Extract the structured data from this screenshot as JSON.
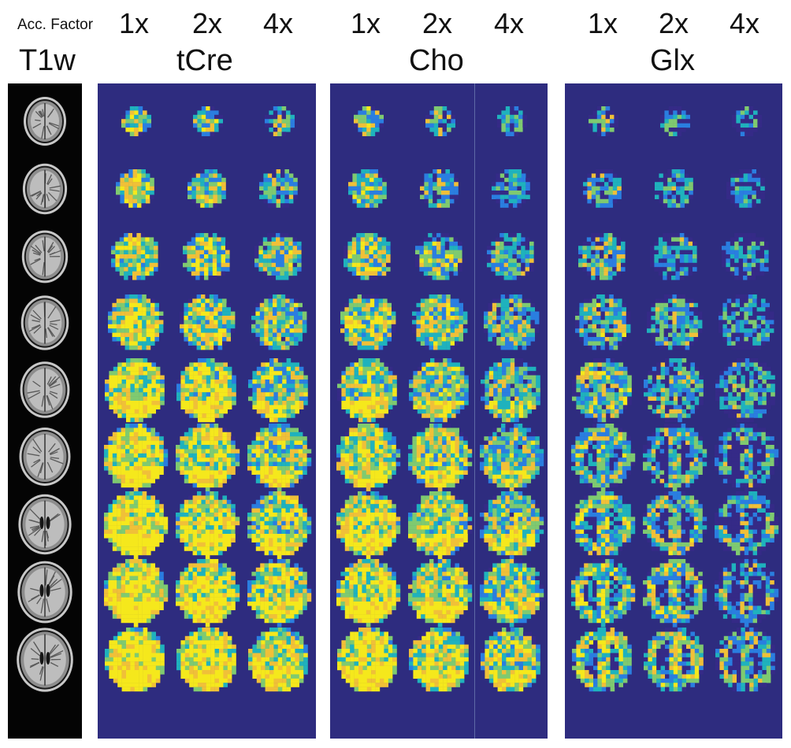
{
  "labels": {
    "acc_factor": "Acc. Factor",
    "anatomy": "T1w",
    "factors": [
      "1x",
      "2x",
      "4x"
    ]
  },
  "metabolites": [
    {
      "name": "tCre"
    },
    {
      "name": "Cho"
    },
    {
      "name": "Glx"
    }
  ],
  "colormap": [
    "#352a87",
    "#2a7ee0",
    "#1fb2bd",
    "#7fca70",
    "#f0c038",
    "#f5e81c"
  ],
  "background_color": "#2e2c7f"
}
